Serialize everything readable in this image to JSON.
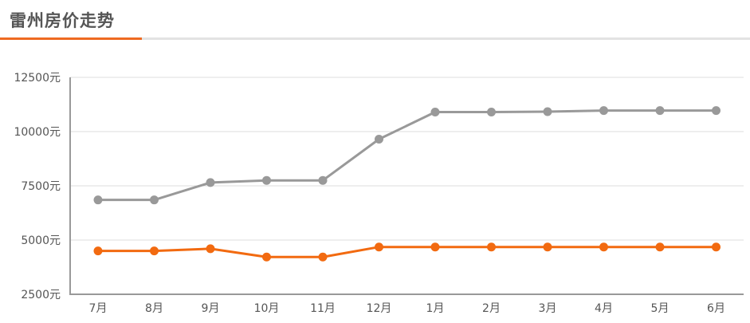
{
  "header": {
    "title": "雷州房价走势"
  },
  "colors": {
    "accent": "#ee6a21",
    "grey_series": "#999999",
    "orange_series": "#f26a10",
    "grid": "#dddddd",
    "axis": "#999999"
  },
  "chart_data": {
    "type": "line",
    "title": "",
    "xlabel": "",
    "ylabel": "",
    "categories": [
      "7月",
      "8月",
      "9月",
      "10月",
      "11月",
      "12月",
      "1月",
      "2月",
      "3月",
      "4月",
      "5月",
      "6月"
    ],
    "ylim": [
      2500,
      12500
    ],
    "yticks": [
      2500,
      5000,
      7500,
      10000,
      12500
    ],
    "ytick_labels": [
      "2500元",
      "5000元",
      "7500元",
      "10000元",
      "12500元"
    ],
    "grid": true,
    "legend": "none",
    "series": [
      {
        "color": "#999999",
        "values": [
          6850,
          6850,
          7650,
          7750,
          7750,
          9650,
          10900,
          10900,
          10920,
          10970,
          10970,
          10970
        ]
      },
      {
        "color": "#f26a10",
        "values": [
          4500,
          4500,
          4600,
          4220,
          4220,
          4680,
          4680,
          4680,
          4680,
          4680,
          4680,
          4680
        ]
      }
    ]
  }
}
